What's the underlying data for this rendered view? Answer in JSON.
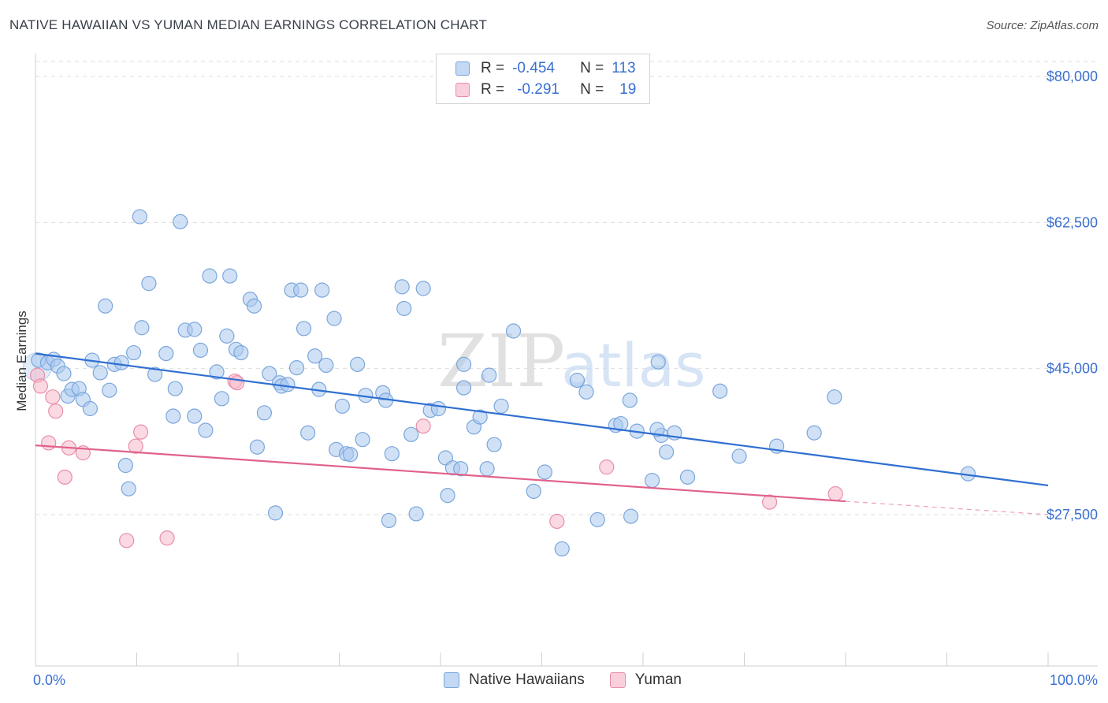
{
  "header": {
    "title": "NATIVE HAWAIIAN VS YUMAN MEDIAN EARNINGS CORRELATION CHART",
    "source": "Source: ZipAtlas.com"
  },
  "legend": {
    "series1": {
      "r_label": "R =",
      "r_value": "-0.454",
      "n_label": "N =",
      "n_value": "113"
    },
    "series2": {
      "r_label": "R =",
      "r_value": "-0.291",
      "n_label": "N =",
      "n_value": "19"
    }
  },
  "bottom_legend": {
    "series1": "Native Hawaiians",
    "series2": "Yuman"
  },
  "colors": {
    "blue_fill": "#a9c8ee",
    "blue_stroke": "#7aa6dc",
    "blue_line": "#2f6fd1",
    "pink_fill": "#f5b9cb",
    "pink_stroke": "#e98eab",
    "pink_line": "#e0628a",
    "axis_text": "#3a6fd0",
    "grid": "#dedede"
  },
  "watermark": {
    "part1": "ZIP",
    "part2": "atlas"
  },
  "chart_data": {
    "type": "scatter",
    "title": "NATIVE HAWAIIAN VS YUMAN MEDIAN EARNINGS CORRELATION CHART",
    "xlabel": "",
    "ylabel": "Median Earnings",
    "xlim": [
      0,
      100
    ],
    "ylim": [
      12000,
      82000
    ],
    "x_tick_labels": [
      "0.0%",
      "100.0%"
    ],
    "y_ticks": [
      27500,
      45000,
      62500,
      80000
    ],
    "y_tick_labels": [
      "$27,500",
      "$45,000",
      "$62,500",
      "$80,000"
    ],
    "grid": true,
    "series": [
      {
        "name": "Native Hawaiians",
        "r": -0.454,
        "n": 113,
        "trend": {
          "x0": 0,
          "y0": 46800,
          "x1": 100,
          "y1": 31000
        },
        "points": [
          [
            0.3,
            46000
          ],
          [
            1.2,
            45700
          ],
          [
            1.8,
            46100
          ],
          [
            2.2,
            45300
          ],
          [
            2.8,
            44400
          ],
          [
            3.2,
            41700
          ],
          [
            3.6,
            42500
          ],
          [
            4.3,
            42600
          ],
          [
            4.7,
            41300
          ],
          [
            5.4,
            40200
          ],
          [
            5.6,
            46000
          ],
          [
            6.4,
            44500
          ],
          [
            6.9,
            52500
          ],
          [
            7.3,
            42400
          ],
          [
            7.8,
            45500
          ],
          [
            8.5,
            45700
          ],
          [
            8.9,
            33400
          ],
          [
            9.2,
            30600
          ],
          [
            9.7,
            46900
          ],
          [
            10.5,
            49900
          ],
          [
            10.3,
            63200
          ],
          [
            11.2,
            55200
          ],
          [
            11.8,
            44300
          ],
          [
            12.9,
            46800
          ],
          [
            13.8,
            42600
          ],
          [
            13.6,
            39300
          ],
          [
            14.3,
            62600
          ],
          [
            14.8,
            49600
          ],
          [
            15.7,
            39300
          ],
          [
            15.7,
            49700
          ],
          [
            16.3,
            47200
          ],
          [
            16.8,
            37600
          ],
          [
            17.2,
            56100
          ],
          [
            17.9,
            44600
          ],
          [
            18.4,
            41400
          ],
          [
            18.9,
            48900
          ],
          [
            19.2,
            56100
          ],
          [
            19.8,
            47300
          ],
          [
            20.3,
            46900
          ],
          [
            21.2,
            53300
          ],
          [
            21.6,
            52500
          ],
          [
            21.9,
            35600
          ],
          [
            22.6,
            39700
          ],
          [
            23.1,
            44400
          ],
          [
            23.7,
            27700
          ],
          [
            24.1,
            43300
          ],
          [
            24.3,
            42900
          ],
          [
            24.9,
            43100
          ],
          [
            25.3,
            54400
          ],
          [
            25.8,
            45100
          ],
          [
            26.2,
            54400
          ],
          [
            26.5,
            49800
          ],
          [
            26.9,
            37300
          ],
          [
            27.6,
            46500
          ],
          [
            28.0,
            42500
          ],
          [
            28.3,
            54400
          ],
          [
            28.7,
            45400
          ],
          [
            29.5,
            51000
          ],
          [
            29.7,
            35300
          ],
          [
            30.3,
            40500
          ],
          [
            30.7,
            34800
          ],
          [
            31.1,
            34700
          ],
          [
            31.8,
            45500
          ],
          [
            32.3,
            36500
          ],
          [
            32.6,
            41800
          ],
          [
            34.3,
            42100
          ],
          [
            34.6,
            41200
          ],
          [
            34.9,
            26800
          ],
          [
            35.2,
            34800
          ],
          [
            36.2,
            54800
          ],
          [
            36.4,
            52200
          ],
          [
            37.1,
            37100
          ],
          [
            37.6,
            27600
          ],
          [
            38.3,
            54600
          ],
          [
            39.0,
            40000
          ],
          [
            39.8,
            40200
          ],
          [
            40.5,
            34300
          ],
          [
            40.7,
            29800
          ],
          [
            41.2,
            33100
          ],
          [
            42.0,
            33000
          ],
          [
            42.3,
            45500
          ],
          [
            42.3,
            42700
          ],
          [
            43.3,
            38000
          ],
          [
            43.9,
            39200
          ],
          [
            44.6,
            33000
          ],
          [
            44.8,
            44200
          ],
          [
            45.3,
            35900
          ],
          [
            46.0,
            40500
          ],
          [
            47.2,
            49500
          ],
          [
            49.2,
            30300
          ],
          [
            50.3,
            32600
          ],
          [
            52.0,
            23400
          ],
          [
            53.5,
            43600
          ],
          [
            54.4,
            42200
          ],
          [
            55.5,
            26900
          ],
          [
            57.3,
            38200
          ],
          [
            57.8,
            38400
          ],
          [
            58.7,
            41200
          ],
          [
            58.8,
            27300
          ],
          [
            59.4,
            37500
          ],
          [
            60.9,
            31600
          ],
          [
            61.5,
            45800
          ],
          [
            61.8,
            37000
          ],
          [
            61.4,
            37700
          ],
          [
            62.3,
            35000
          ],
          [
            63.1,
            37300
          ],
          [
            64.4,
            32000
          ],
          [
            67.6,
            42300
          ],
          [
            69.5,
            34500
          ],
          [
            73.2,
            35700
          ],
          [
            76.9,
            37300
          ],
          [
            78.9,
            41600
          ],
          [
            92.1,
            32400
          ]
        ]
      },
      {
        "name": "Yuman",
        "r": -0.291,
        "n": 19,
        "trend": {
          "x0": 0,
          "y0": 35800,
          "x1": 80,
          "y1": 29100,
          "dash_to_x": 100,
          "dash_to_y": 27500
        },
        "points": [
          [
            0.2,
            44200
          ],
          [
            0.5,
            42900
          ],
          [
            1.3,
            36100
          ],
          [
            1.7,
            41600
          ],
          [
            2.0,
            39900
          ],
          [
            2.9,
            32000
          ],
          [
            3.3,
            35500
          ],
          [
            4.7,
            34900
          ],
          [
            9.0,
            24400
          ],
          [
            9.9,
            35700
          ],
          [
            10.4,
            37400
          ],
          [
            13.0,
            24700
          ],
          [
            19.7,
            43500
          ],
          [
            19.9,
            43300
          ],
          [
            38.3,
            38100
          ],
          [
            51.5,
            26700
          ],
          [
            56.4,
            33200
          ],
          [
            72.5,
            29000
          ],
          [
            79.0,
            30000
          ]
        ]
      }
    ]
  }
}
